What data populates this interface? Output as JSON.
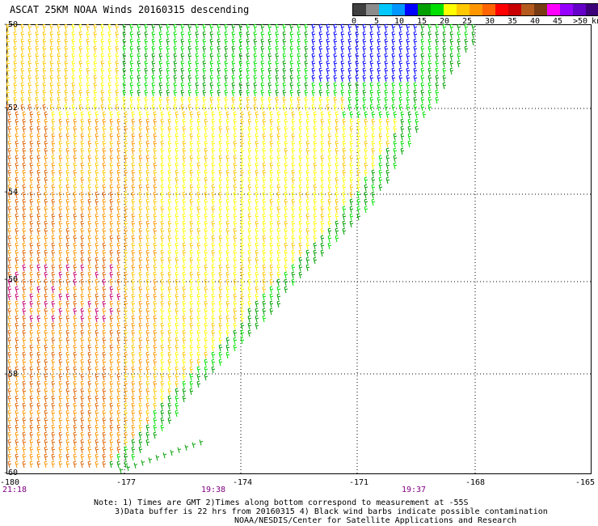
{
  "header": {
    "title": "ASCAT 25KM NOAA Winds 20160315 descending"
  },
  "legend": {
    "colors": [
      "#404040",
      "#8c8c8c",
      "#00c8ff",
      "#0096ff",
      "#0000ff",
      "#00a000",
      "#00e000",
      "#ffff00",
      "#ffc800",
      "#ff9600",
      "#ff6400",
      "#ff0000",
      "#c80000",
      "#b45a1e",
      "#783c14",
      "#ff00ff",
      "#9600ff",
      "#6400c8",
      "#3c0078"
    ],
    "ticks": [
      "0",
      "5",
      "10",
      "15",
      "20",
      "25",
      "30",
      "35",
      "40",
      "45",
      ">50"
    ],
    "units": "knots"
  },
  "axes": {
    "lat_labels": [
      "-50",
      "-52",
      "-54",
      "-56",
      "-58",
      "-60"
    ],
    "lon_labels": [
      "-180",
      "-177",
      "-174",
      "-171",
      "-168",
      "-165"
    ],
    "time_labels": [
      "21:18",
      "19:38",
      "19:37"
    ]
  },
  "notes": {
    "line1": "Note: 1) Times are GMT 2)Times along bottom correspond to measurement at -55S",
    "line2": "3)Data buffer is 22 hrs from 20160315 4) Black wind barbs indicate possible contamination",
    "line3": "NOAA/NESDIS/Center for Satellite Applications and Research"
  },
  "map_data": {
    "lat_range": [
      -60,
      -50
    ],
    "lon_range": [
      -180,
      -165
    ],
    "grid": true,
    "barb_colors": {
      "blue": "#0000ff",
      "dark_green": "#00a000",
      "green": "#00e000",
      "yellow": "#ffff00",
      "light_orange": "#ffc800",
      "orange": "#ff9600",
      "dark_orange": "#e06400",
      "red": "#ff0000",
      "magenta": "#c8006e"
    }
  }
}
